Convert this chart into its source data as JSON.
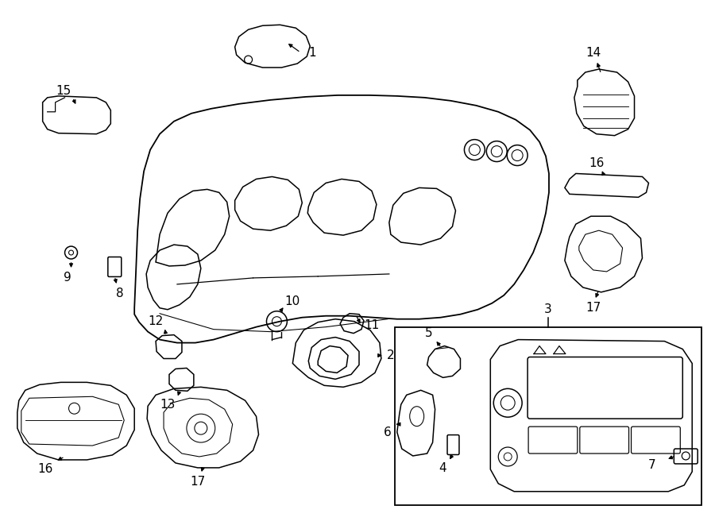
{
  "background_color": "#ffffff",
  "line_color": "#000000",
  "lw": 1.1,
  "fig_width": 9.0,
  "fig_height": 6.61
}
